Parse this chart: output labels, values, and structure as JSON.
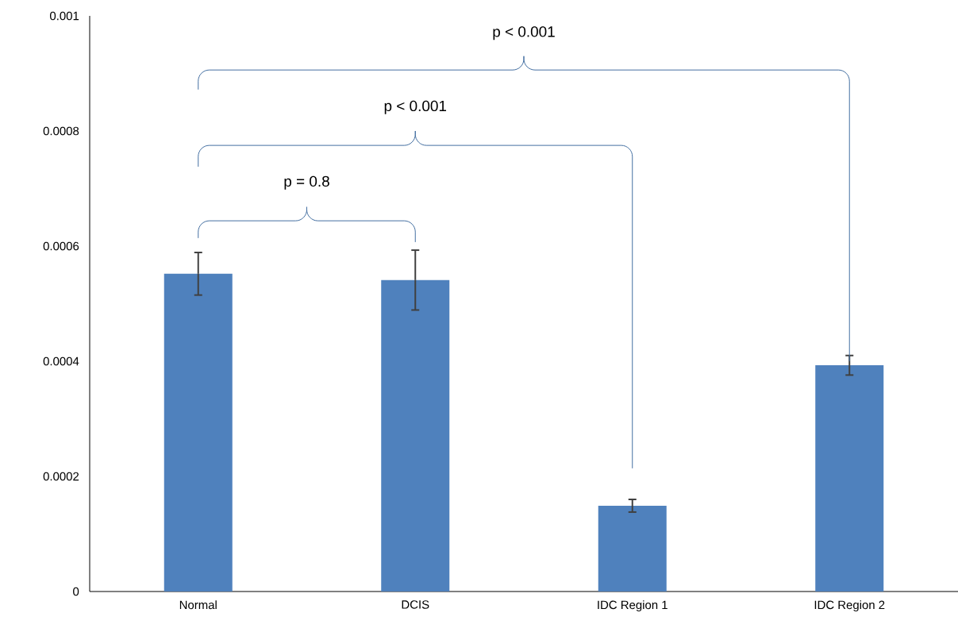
{
  "chart_data": {
    "type": "bar",
    "categories": [
      "Normal",
      "DCIS",
      "IDC Region 1",
      "IDC Region 2"
    ],
    "values": [
      0.000552,
      0.000541,
      0.000149,
      0.000393
    ],
    "errors": [
      3.7e-05,
      5.2e-05,
      1.1e-05,
      1.7e-05
    ],
    "color": "#4f81bd",
    "ylim": [
      0,
      0.001
    ],
    "yticks": [
      0,
      0.0002,
      0.0004,
      0.0006,
      0.0008,
      0.001
    ],
    "annotations": [
      "p < 0.001",
      "p < 0.001",
      "p = 0.8"
    ]
  }
}
